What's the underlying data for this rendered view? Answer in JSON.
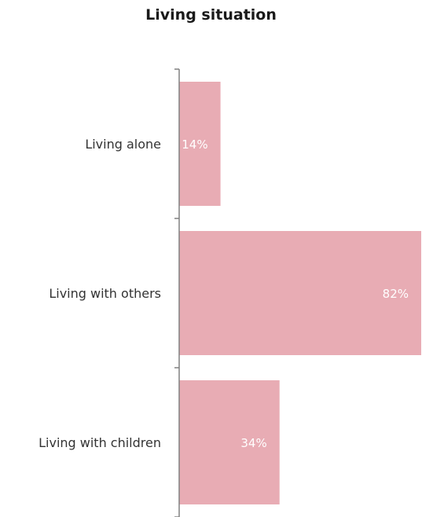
{
  "chart_data": {
    "type": "bar",
    "orientation": "horizontal",
    "title": "Living situation",
    "xlabel": "",
    "ylabel": "",
    "categories": [
      "Living alone",
      "Living with others",
      "Living with children"
    ],
    "values": [
      14,
      82,
      34
    ],
    "data_labels": [
      "14%",
      "82%",
      "34%"
    ],
    "xlim": [
      0,
      82
    ],
    "grid": false,
    "legend": "none",
    "colors": {
      "bar": "#e8acb4",
      "data_label": "#ffffff",
      "category_label": "#333333",
      "axis": "#808080",
      "title": "#1a1a1a"
    }
  }
}
